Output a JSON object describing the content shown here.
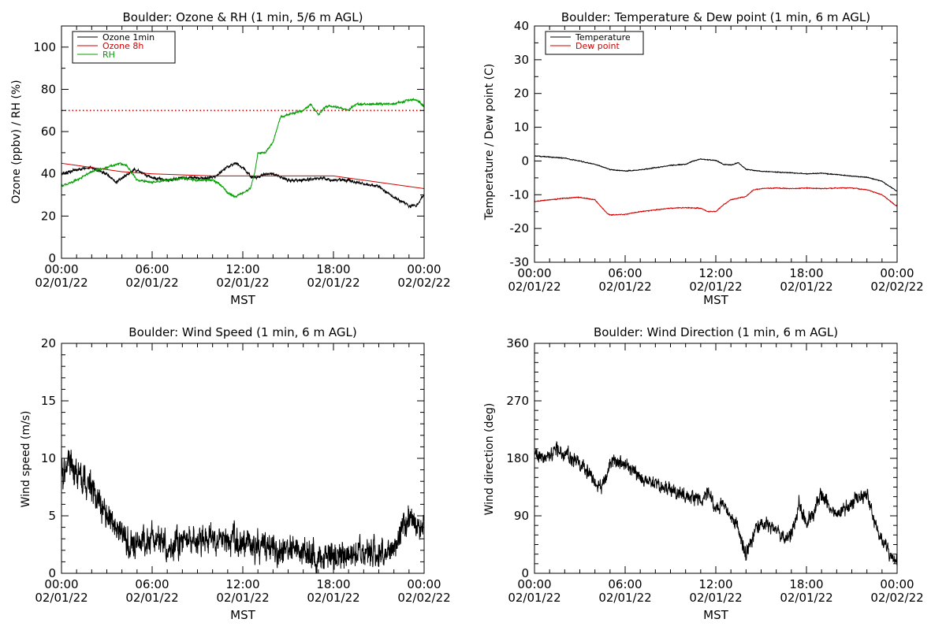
{
  "chart_data": [
    {
      "id": "ozone",
      "type": "line",
      "title": "Boulder: Ozone & RH (1 min, 5/6 m AGL)",
      "xlabel": "MST",
      "ylabel": "Ozone (ppbv) / RH (%)",
      "xlim": [
        0,
        24
      ],
      "ylim": [
        0,
        110
      ],
      "yticks": [
        0,
        20,
        40,
        60,
        80,
        100
      ],
      "yminor": 10,
      "xtick_labels": [
        {
          "x": 0,
          "time": "00:00",
          "date": "02/01/22"
        },
        {
          "x": 6,
          "time": "06:00",
          "date": "02/01/22"
        },
        {
          "x": 12,
          "time": "12:00",
          "date": "02/01/22"
        },
        {
          "x": 18,
          "time": "18:00",
          "date": "02/01/22"
        },
        {
          "x": 24,
          "time": "00:00",
          "date": "02/02/22"
        }
      ],
      "legend_position": "top-left",
      "reference_line": {
        "y": 70,
        "color": "#d00000",
        "style": "dotted"
      },
      "series": [
        {
          "name": "Ozone 1min",
          "color": "#000000",
          "noise": 0.9,
          "points": [
            [
              0,
              40
            ],
            [
              1,
              42
            ],
            [
              2,
              43
            ],
            [
              3,
              40
            ],
            [
              3.6,
              36
            ],
            [
              4,
              38
            ],
            [
              4.8,
              42
            ],
            [
              5.5,
              40
            ],
            [
              6,
              38
            ],
            [
              7,
              37
            ],
            [
              8,
              38
            ],
            [
              9,
              38
            ],
            [
              10,
              38
            ],
            [
              11,
              43
            ],
            [
              11.5,
              45
            ],
            [
              12,
              43
            ],
            [
              12.5,
              39
            ],
            [
              13,
              38
            ],
            [
              13.5,
              40
            ],
            [
              14,
              40
            ],
            [
              15,
              37
            ],
            [
              16,
              37
            ],
            [
              17,
              38
            ],
            [
              18,
              37
            ],
            [
              19,
              37
            ],
            [
              20,
              35
            ],
            [
              21,
              34
            ],
            [
              22,
              29
            ],
            [
              23,
              25
            ],
            [
              23.5,
              25
            ],
            [
              24,
              30
            ]
          ]
        },
        {
          "name": "Ozone 8h",
          "color": "#d00000",
          "noise": 0,
          "points": [
            [
              0,
              45
            ],
            [
              2,
              43
            ],
            [
              4,
              41
            ],
            [
              6,
              40
            ],
            [
              8,
              39.5
            ],
            [
              10,
              39
            ],
            [
              12,
              39
            ],
            [
              14,
              39
            ],
            [
              16,
              39
            ],
            [
              18,
              39
            ],
            [
              20,
              37
            ],
            [
              22,
              35
            ],
            [
              24,
              33
            ]
          ]
        },
        {
          "name": "RH",
          "color": "#00a000",
          "noise": 0.6,
          "points": [
            [
              0,
              34
            ],
            [
              1,
              37
            ],
            [
              2,
              41
            ],
            [
              3,
              43
            ],
            [
              3.8,
              45
            ],
            [
              4.3,
              44
            ],
            [
              5,
              37
            ],
            [
              6,
              36
            ],
            [
              7,
              37
            ],
            [
              8,
              38
            ],
            [
              9,
              37
            ],
            [
              10,
              37
            ],
            [
              10.5,
              35
            ],
            [
              11,
              31
            ],
            [
              11.5,
              29
            ],
            [
              12,
              31
            ],
            [
              12.5,
              33
            ],
            [
              12.8,
              41
            ],
            [
              13,
              50
            ],
            [
              13.5,
              50
            ],
            [
              14,
              55
            ],
            [
              14.5,
              67
            ],
            [
              15,
              68
            ],
            [
              15.5,
              69
            ],
            [
              16,
              70
            ],
            [
              16.5,
              73
            ],
            [
              17,
              68
            ],
            [
              17.5,
              72
            ],
            [
              18,
              72
            ],
            [
              19,
              70
            ],
            [
              19.5,
              73
            ],
            [
              20,
              73
            ],
            [
              21,
              73
            ],
            [
              22,
              73
            ],
            [
              23,
              75
            ],
            [
              23.5,
              75
            ],
            [
              24,
              72
            ]
          ]
        }
      ]
    },
    {
      "id": "temp",
      "type": "line",
      "title": "Boulder: Temperature & Dew point (1 min, 6 m AGL)",
      "xlabel": "MST",
      "ylabel": "Temperature / Dew point (C)",
      "xlim": [
        0,
        24
      ],
      "ylim": [
        -30,
        40
      ],
      "yticks": [
        -30,
        -20,
        -10,
        0,
        10,
        20,
        30,
        40
      ],
      "yminor": 5,
      "xtick_labels": [
        {
          "x": 0,
          "time": "00:00",
          "date": "02/01/22"
        },
        {
          "x": 6,
          "time": "06:00",
          "date": "02/01/22"
        },
        {
          "x": 12,
          "time": "12:00",
          "date": "02/01/22"
        },
        {
          "x": 18,
          "time": "18:00",
          "date": "02/01/22"
        },
        {
          "x": 24,
          "time": "00:00",
          "date": "02/02/22"
        }
      ],
      "legend_position": "top-left",
      "series": [
        {
          "name": "Temperature",
          "color": "#000000",
          "noise": 0.15,
          "points": [
            [
              0,
              1.5
            ],
            [
              1,
              1.2
            ],
            [
              2,
              0.8
            ],
            [
              3,
              0
            ],
            [
              4,
              -1
            ],
            [
              5,
              -2.5
            ],
            [
              6,
              -3
            ],
            [
              7,
              -2.6
            ],
            [
              8,
              -2
            ],
            [
              9,
              -1.3
            ],
            [
              10,
              -1
            ],
            [
              10.5,
              0
            ],
            [
              11,
              0.6
            ],
            [
              11.5,
              0.3
            ],
            [
              12,
              0.2
            ],
            [
              12.5,
              -1
            ],
            [
              13,
              -1.2
            ],
            [
              13.5,
              -0.5
            ],
            [
              14,
              -2.5
            ],
            [
              15,
              -3
            ],
            [
              16,
              -3.3
            ],
            [
              17,
              -3.5
            ],
            [
              18,
              -3.8
            ],
            [
              19,
              -3.6
            ],
            [
              20,
              -4
            ],
            [
              21,
              -4.5
            ],
            [
              22,
              -4.8
            ],
            [
              23,
              -6
            ],
            [
              24,
              -9
            ]
          ]
        },
        {
          "name": "Dew point",
          "color": "#d00000",
          "noise": 0.15,
          "points": [
            [
              0,
              -12
            ],
            [
              1,
              -11.5
            ],
            [
              2,
              -11
            ],
            [
              3,
              -10.8
            ],
            [
              4,
              -11.5
            ],
            [
              4.8,
              -15.5
            ],
            [
              5,
              -16
            ],
            [
              6,
              -15.8
            ],
            [
              7,
              -15
            ],
            [
              8,
              -14.5
            ],
            [
              9,
              -14
            ],
            [
              10,
              -13.8
            ],
            [
              11,
              -14
            ],
            [
              11.5,
              -15
            ],
            [
              12,
              -15
            ],
            [
              12.5,
              -13
            ],
            [
              13,
              -11.5
            ],
            [
              14,
              -10.5
            ],
            [
              14.5,
              -8.5
            ],
            [
              15,
              -8.2
            ],
            [
              16,
              -8
            ],
            [
              17,
              -8.2
            ],
            [
              18,
              -8
            ],
            [
              19,
              -8.2
            ],
            [
              20,
              -8
            ],
            [
              21,
              -8
            ],
            [
              22,
              -8.5
            ],
            [
              23,
              -10
            ],
            [
              24,
              -13.5
            ]
          ]
        }
      ]
    },
    {
      "id": "wspd",
      "type": "line",
      "title": "Boulder: Wind Speed (1 min, 6 m AGL)",
      "xlabel": "MST",
      "ylabel": "Wind speed (m/s)",
      "xlim": [
        0,
        24
      ],
      "ylim": [
        0,
        20
      ],
      "yticks": [
        0,
        5,
        10,
        15,
        20
      ],
      "yminor": 1,
      "xtick_labels": [
        {
          "x": 0,
          "time": "00:00",
          "date": "02/01/22"
        },
        {
          "x": 6,
          "time": "06:00",
          "date": "02/01/22"
        },
        {
          "x": 12,
          "time": "12:00",
          "date": "02/01/22"
        },
        {
          "x": 18,
          "time": "18:00",
          "date": "02/01/22"
        },
        {
          "x": 24,
          "time": "00:00",
          "date": "02/02/22"
        }
      ],
      "series": [
        {
          "name": "",
          "color": "#000000",
          "noise": 1.6,
          "points": [
            [
              0,
              9
            ],
            [
              0.5,
              9.5
            ],
            [
              1,
              8.5
            ],
            [
              1.5,
              8
            ],
            [
              2,
              7.5
            ],
            [
              2.5,
              6
            ],
            [
              3,
              5
            ],
            [
              3.5,
              4.5
            ],
            [
              4,
              3.5
            ],
            [
              4.5,
              2.5
            ],
            [
              5,
              3
            ],
            [
              5.5,
              2.5
            ],
            [
              6,
              3
            ],
            [
              7,
              2.5
            ],
            [
              8,
              2.5
            ],
            [
              9,
              3
            ],
            [
              10,
              3
            ],
            [
              11,
              3
            ],
            [
              12,
              2.5
            ],
            [
              13,
              2.5
            ],
            [
              14,
              2
            ],
            [
              15,
              2
            ],
            [
              16,
              2
            ],
            [
              17,
              1.5
            ],
            [
              18,
              1.5
            ],
            [
              19,
              1.5
            ],
            [
              20,
              1.5
            ],
            [
              21,
              2
            ],
            [
              22,
              2
            ],
            [
              22.5,
              4
            ],
            [
              23,
              4.5
            ],
            [
              24,
              4
            ]
          ]
        }
      ]
    },
    {
      "id": "wdir",
      "type": "line",
      "title": "Boulder: Wind Direction (1 min, 6 m AGL)",
      "xlabel": "MST",
      "ylabel": "Wind direction (deg)",
      "xlim": [
        0,
        24
      ],
      "ylim": [
        0,
        360
      ],
      "yticks": [
        0,
        90,
        180,
        270,
        360
      ],
      "yminor": 15,
      "xtick_labels": [
        {
          "x": 0,
          "time": "00:00",
          "date": "02/01/22"
        },
        {
          "x": 6,
          "time": "06:00",
          "date": "02/01/22"
        },
        {
          "x": 12,
          "time": "12:00",
          "date": "02/01/22"
        },
        {
          "x": 18,
          "time": "18:00",
          "date": "02/01/22"
        },
        {
          "x": 24,
          "time": "00:00",
          "date": "02/02/22"
        }
      ],
      "series": [
        {
          "name": "",
          "color": "#000000",
          "noise": 14,
          "points": [
            [
              0,
              180
            ],
            [
              1,
              185
            ],
            [
              1.5,
              195
            ],
            [
              2,
              185
            ],
            [
              3,
              175
            ],
            [
              4,
              145
            ],
            [
              4.5,
              135
            ],
            [
              5,
              170
            ],
            [
              5.5,
              175
            ],
            [
              6,
              170
            ],
            [
              7,
              150
            ],
            [
              8,
              140
            ],
            [
              9,
              130
            ],
            [
              10,
              120
            ],
            [
              11,
              115
            ],
            [
              11.5,
              130
            ],
            [
              12,
              100
            ],
            [
              12.5,
              110
            ],
            [
              13,
              90
            ],
            [
              13.5,
              70
            ],
            [
              14,
              30
            ],
            [
              14.5,
              60
            ],
            [
              15,
              80
            ],
            [
              16,
              70
            ],
            [
              16.5,
              50
            ],
            [
              17,
              60
            ],
            [
              17.5,
              110
            ],
            [
              18,
              80
            ],
            [
              18.5,
              95
            ],
            [
              19,
              130
            ],
            [
              19.5,
              100
            ],
            [
              20,
              90
            ],
            [
              21,
              110
            ],
            [
              22,
              125
            ],
            [
              22.5,
              80
            ],
            [
              23,
              50
            ],
            [
              23.5,
              30
            ],
            [
              24,
              20
            ]
          ]
        }
      ]
    }
  ]
}
